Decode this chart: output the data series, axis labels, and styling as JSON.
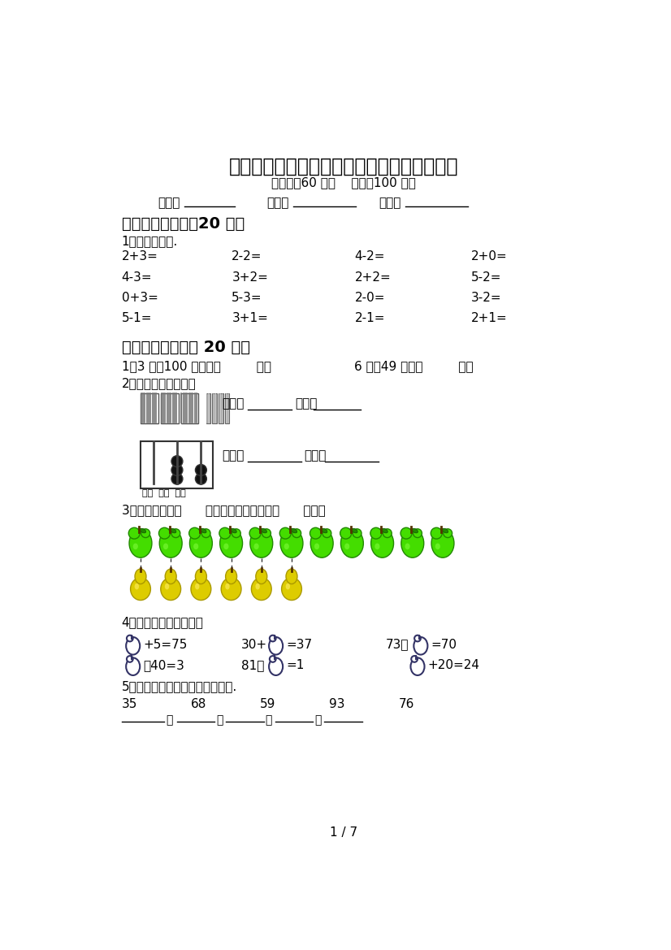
{
  "title": "部编版一年级数学上册期中测试卷及答案下载",
  "subtitle": "（时间：60 分钟    分数：100 分）",
  "class_label": "班级：",
  "name_label": "姓名：",
  "score_label": "分数：",
  "section1_title": "一、计算小能手（20 分）",
  "section1_sub": "1、直接写得数.",
  "math_rows": [
    [
      "2+3=",
      "2-2=",
      "4-2=",
      "2+0="
    ],
    [
      "4-3=",
      "3+2=",
      "2+2=",
      "5-2="
    ],
    [
      "0+3=",
      "5-3=",
      "2-0=",
      "3-2="
    ],
    [
      "5-1=",
      "3+1=",
      "2-1=",
      "2+1="
    ]
  ],
  "section2_title": "二、填空题。（共 20 分）",
  "fill1_a": "1、3 米－100 厘米＝（         ）米",
  "fill1_b": "6 米＋49 米＝（         ）米",
  "fill2_title": "2、我会读，我会写。",
  "fill2_read1_label": "读作：",
  "fill2_write1_label": "写作：",
  "fill2_read2_label": "读作：",
  "fill2_write2_label": "写作：",
  "abacus_label": "百位  十位  个位",
  "fill3": "3、梨比苹果少（      ）个，梨和苹果一共（      ）个。",
  "fill4_title": "4、在里填上合适的数。",
  "fill4_row1": [
    {
      "prefix": "",
      "suffix": "+5=75"
    },
    {
      "prefix": "30+",
      "suffix": "=37"
    },
    {
      "prefix": "73－",
      "suffix": "=70"
    }
  ],
  "fill4_row2": [
    {
      "prefix": "",
      "suffix": "－40=3"
    },
    {
      "prefix": "81－",
      "suffix": "=1"
    },
    {
      "prefix": "",
      "suffix": "+20=24"
    }
  ],
  "fill5_title": "5、把下面各数从小到大排列起来.",
  "fill5_numbers": [
    "35",
    "68",
    "59",
    "93",
    "76"
  ],
  "page": "1 / 7",
  "bg_color": "#ffffff",
  "text_color": "#000000"
}
